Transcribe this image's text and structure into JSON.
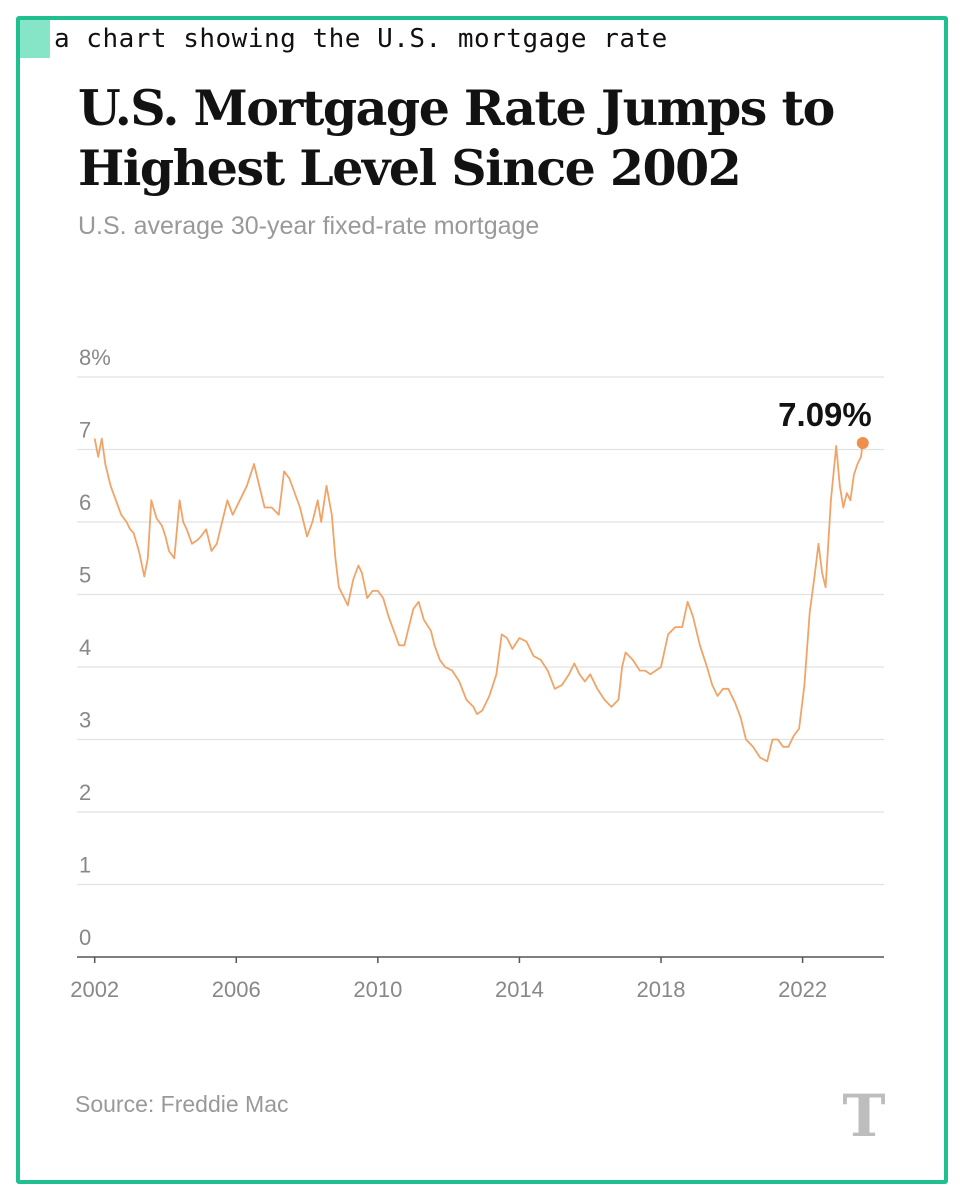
{
  "caption": "a chart showing the U.S. mortgage rate",
  "footer": {
    "source": "Source: Freddie Mac",
    "logo_glyph": "T",
    "logo_icon": "nyt-logo-icon"
  },
  "colors": {
    "line": "#f0a468",
    "point": "#ef8f4e",
    "frame": "#1fbf8f",
    "grid": "#e2e2e2"
  },
  "chart_data": {
    "type": "line",
    "title": "U.S. Mortgage Rate Jumps to Highest Level Since 2002",
    "subtitle": "U.S. average 30-year fixed-rate mortgage",
    "xlabel": "",
    "ylabel": "",
    "xlim": [
      2001.5,
      2024.3
    ],
    "ylim": [
      0,
      8
    ],
    "x_ticks": [
      2002,
      2006,
      2010,
      2014,
      2018,
      2022
    ],
    "x_tick_labels": [
      "2002",
      "2006",
      "2010",
      "2014",
      "2018",
      "2022"
    ],
    "y_ticks": [
      0,
      1,
      2,
      3,
      4,
      5,
      6,
      7,
      8
    ],
    "y_tick_labels": [
      "0",
      "1",
      "2",
      "3",
      "4",
      "5",
      "6",
      "7",
      "8%"
    ],
    "grid": true,
    "annotation": "7.09%",
    "series": [
      {
        "x": [
          2002.0,
          2002.1,
          2002.2,
          2002.3,
          2002.45,
          2002.6,
          2002.75,
          2002.9,
          2003.0,
          2003.1,
          2003.25,
          2003.4,
          2003.5,
          2003.6,
          2003.75,
          2003.9,
          2004.0,
          2004.1,
          2004.25,
          2004.4,
          2004.5,
          2004.6,
          2004.75,
          2004.9,
          2005.0,
          2005.15,
          2005.3,
          2005.45,
          2005.6,
          2005.75,
          2005.9,
          2006.1,
          2006.3,
          2006.5,
          2006.6,
          2006.8,
          2007.0,
          2007.2,
          2007.35,
          2007.5,
          2007.65,
          2007.8,
          2008.0,
          2008.15,
          2008.3,
          2008.4,
          2008.55,
          2008.7,
          2008.8,
          2008.9,
          2009.0,
          2009.15,
          2009.3,
          2009.45,
          2009.55,
          2009.7,
          2009.85,
          2010.0,
          2010.15,
          2010.3,
          2010.45,
          2010.6,
          2010.75,
          2010.85,
          2011.0,
          2011.15,
          2011.3,
          2011.5,
          2011.6,
          2011.75,
          2011.9,
          2012.1,
          2012.3,
          2012.5,
          2012.7,
          2012.8,
          2012.95,
          2013.15,
          2013.35,
          2013.5,
          2013.65,
          2013.8,
          2014.0,
          2014.2,
          2014.4,
          2014.6,
          2014.8,
          2015.0,
          2015.2,
          2015.4,
          2015.55,
          2015.7,
          2015.85,
          2016.0,
          2016.2,
          2016.4,
          2016.6,
          2016.8,
          2016.9,
          2017.0,
          2017.2,
          2017.4,
          2017.55,
          2017.7,
          2017.85,
          2018.0,
          2018.2,
          2018.4,
          2018.6,
          2018.75,
          2018.9,
          2019.1,
          2019.3,
          2019.45,
          2019.6,
          2019.75,
          2019.9,
          2020.1,
          2020.25,
          2020.4,
          2020.6,
          2020.8,
          2021.0,
          2021.15,
          2021.3,
          2021.45,
          2021.6,
          2021.75,
          2021.9,
          2022.05,
          2022.2,
          2022.35,
          2022.45,
          2022.55,
          2022.65,
          2022.8,
          2022.95,
          2023.05,
          2023.15,
          2023.25,
          2023.35,
          2023.45,
          2023.55,
          2023.65,
          2023.7
        ],
        "values": [
          7.15,
          6.9,
          7.15,
          6.8,
          6.5,
          6.3,
          6.1,
          6.0,
          5.9,
          5.85,
          5.6,
          5.25,
          5.5,
          6.3,
          6.05,
          5.95,
          5.8,
          5.6,
          5.5,
          6.3,
          6.0,
          5.9,
          5.7,
          5.75,
          5.8,
          5.9,
          5.6,
          5.7,
          6.0,
          6.3,
          6.1,
          6.3,
          6.5,
          6.8,
          6.6,
          6.2,
          6.2,
          6.1,
          6.7,
          6.6,
          6.4,
          6.2,
          5.8,
          6.0,
          6.3,
          6.0,
          6.5,
          6.1,
          5.5,
          5.1,
          5.0,
          4.85,
          5.2,
          5.4,
          5.3,
          4.95,
          5.05,
          5.05,
          4.95,
          4.7,
          4.5,
          4.3,
          4.3,
          4.5,
          4.8,
          4.9,
          4.65,
          4.5,
          4.3,
          4.1,
          4.0,
          3.95,
          3.8,
          3.55,
          3.45,
          3.35,
          3.4,
          3.6,
          3.9,
          4.45,
          4.4,
          4.25,
          4.4,
          4.35,
          4.15,
          4.1,
          3.95,
          3.7,
          3.75,
          3.9,
          4.05,
          3.9,
          3.8,
          3.9,
          3.7,
          3.55,
          3.45,
          3.55,
          4.0,
          4.2,
          4.1,
          3.95,
          3.95,
          3.9,
          3.95,
          4.0,
          4.45,
          4.55,
          4.55,
          4.9,
          4.7,
          4.3,
          4.0,
          3.75,
          3.6,
          3.7,
          3.7,
          3.5,
          3.3,
          3.0,
          2.9,
          2.75,
          2.7,
          3.0,
          3.0,
          2.9,
          2.9,
          3.05,
          3.15,
          3.75,
          4.75,
          5.3,
          5.7,
          5.3,
          5.1,
          6.3,
          7.05,
          6.5,
          6.2,
          6.4,
          6.3,
          6.65,
          6.8,
          6.9,
          7.09
        ]
      }
    ]
  }
}
